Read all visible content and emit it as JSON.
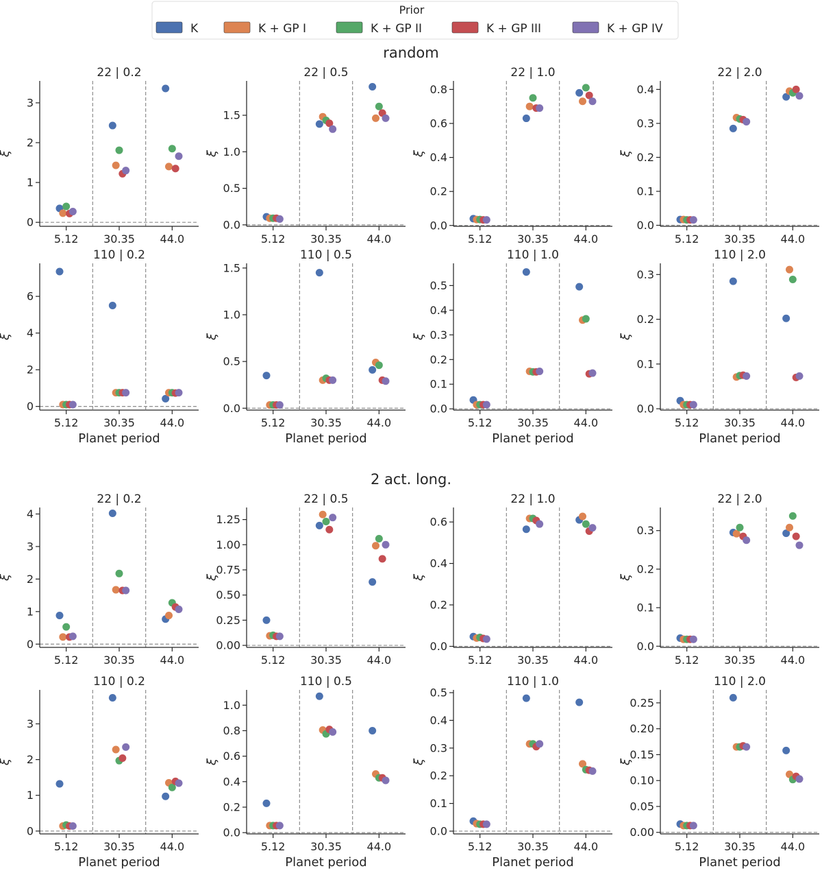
{
  "legend": {
    "title": "Prior",
    "entries": [
      {
        "label": "K",
        "color": "#4c72b0"
      },
      {
        "label": "K + GP I",
        "color": "#dd8452"
      },
      {
        "label": "K + GP II",
        "color": "#55a868"
      },
      {
        "label": "K + GP III",
        "color": "#c44e52"
      },
      {
        "label": "K + GP IV",
        "color": "#8172b3"
      }
    ]
  },
  "colors": {
    "K": "#4c72b0",
    "K + GP I": "#dd8452",
    "K + GP II": "#55a868",
    "K + GP III": "#c44e52",
    "K + GP IV": "#8172b3",
    "axis": "#262626",
    "guide": "#8c8c8c"
  },
  "sections": [
    {
      "title": "random"
    },
    {
      "title": "2 act. long."
    }
  ],
  "chart_data": [
    {
      "type": "scatter",
      "section": "random",
      "title": "22 | 0.2",
      "categories": [
        "5.12",
        "30.35",
        "44.0"
      ],
      "ylim": [
        -0.1,
        3.55
      ],
      "yticks": [
        0,
        1,
        2,
        3
      ],
      "ylabel": "ξ",
      "xlabel": "",
      "series": [
        {
          "name": "K",
          "values": [
            0.35,
            2.43,
            3.36
          ]
        },
        {
          "name": "K + GP I",
          "values": [
            0.23,
            1.43,
            1.4
          ]
        },
        {
          "name": "K + GP II",
          "values": [
            0.4,
            1.81,
            1.85
          ]
        },
        {
          "name": "K + GP III",
          "values": [
            0.22,
            1.22,
            1.35
          ]
        },
        {
          "name": "K + GP IV",
          "values": [
            0.27,
            1.3,
            1.66
          ]
        }
      ]
    },
    {
      "type": "scatter",
      "section": "random",
      "title": "22 | 0.5",
      "categories": [
        "5.12",
        "30.35",
        "44.0"
      ],
      "ylim": [
        -0.02,
        1.97
      ],
      "yticks": [
        0.0,
        0.5,
        1.0,
        1.5
      ],
      "ytick_labels": [
        "0.0",
        "0.5",
        "1.0",
        "1.5"
      ],
      "ylabel": "ξ",
      "xlabel": "",
      "series": [
        {
          "name": "K",
          "values": [
            0.11,
            1.38,
            1.89
          ]
        },
        {
          "name": "K + GP I",
          "values": [
            0.09,
            1.48,
            1.46
          ]
        },
        {
          "name": "K + GP II",
          "values": [
            0.09,
            1.43,
            1.62
          ]
        },
        {
          "name": "K + GP III",
          "values": [
            0.09,
            1.39,
            1.53
          ]
        },
        {
          "name": "K + GP IV",
          "values": [
            0.08,
            1.31,
            1.46
          ]
        }
      ]
    },
    {
      "type": "scatter",
      "section": "random",
      "title": "22 | 1.0",
      "categories": [
        "5.12",
        "30.35",
        "44.0"
      ],
      "ylim": [
        -0.005,
        0.85
      ],
      "yticks": [
        0.0,
        0.2,
        0.4,
        0.6,
        0.8
      ],
      "ytick_labels": [
        "0.0",
        "0.2",
        "0.4",
        "0.6",
        "0.8"
      ],
      "ylabel": "ξ",
      "xlabel": "",
      "series": [
        {
          "name": "K",
          "values": [
            0.04,
            0.63,
            0.78
          ]
        },
        {
          "name": "K + GP I",
          "values": [
            0.035,
            0.7,
            0.73
          ]
        },
        {
          "name": "K + GP II",
          "values": [
            0.035,
            0.75,
            0.81
          ]
        },
        {
          "name": "K + GP III",
          "values": [
            0.033,
            0.69,
            0.765
          ]
        },
        {
          "name": "K + GP IV",
          "values": [
            0.033,
            0.69,
            0.73
          ]
        }
      ]
    },
    {
      "type": "scatter",
      "section": "random",
      "title": "22 | 2.0",
      "categories": [
        "5.12",
        "30.35",
        "44.0"
      ],
      "ylim": [
        -0.003,
        0.425
      ],
      "yticks": [
        0.0,
        0.1,
        0.2,
        0.3,
        0.4
      ],
      "ytick_labels": [
        "0.0",
        "0.1",
        "0.2",
        "0.3",
        "0.4"
      ],
      "ylabel": "ξ",
      "xlabel": "",
      "series": [
        {
          "name": "K",
          "values": [
            0.017,
            0.285,
            0.378
          ]
        },
        {
          "name": "K + GP I",
          "values": [
            0.017,
            0.317,
            0.395
          ]
        },
        {
          "name": "K + GP II",
          "values": [
            0.016,
            0.313,
            0.39
          ]
        },
        {
          "name": "K + GP III",
          "values": [
            0.016,
            0.311,
            0.4
          ]
        },
        {
          "name": "K + GP IV",
          "values": [
            0.016,
            0.305,
            0.381
          ]
        }
      ]
    },
    {
      "type": "scatter",
      "section": "random",
      "title": "110 | 0.2",
      "categories": [
        "5.12",
        "30.35",
        "44.0"
      ],
      "ylim": [
        -0.2,
        7.8
      ],
      "yticks": [
        0,
        2,
        4,
        6
      ],
      "ylabel": "ξ",
      "xlabel": "Planet period",
      "series": [
        {
          "name": "K",
          "values": [
            7.35,
            5.5,
            0.42
          ]
        },
        {
          "name": "K + GP I",
          "values": [
            0.1,
            0.75,
            0.75
          ]
        },
        {
          "name": "K + GP II",
          "values": [
            0.1,
            0.75,
            0.75
          ]
        },
        {
          "name": "K + GP III",
          "values": [
            0.1,
            0.75,
            0.73
          ]
        },
        {
          "name": "K + GP IV",
          "values": [
            0.1,
            0.75,
            0.75
          ]
        }
      ]
    },
    {
      "type": "scatter",
      "section": "random",
      "title": "110 | 0.5",
      "categories": [
        "5.12",
        "30.35",
        "44.0"
      ],
      "ylim": [
        -0.02,
        1.55
      ],
      "yticks": [
        0.0,
        0.5,
        1.0,
        1.5
      ],
      "ytick_labels": [
        "0.0",
        "0.5",
        "1.0",
        "1.5"
      ],
      "ylabel": "ξ",
      "xlabel": "Planet period",
      "series": [
        {
          "name": "K",
          "values": [
            0.35,
            1.45,
            0.41
          ]
        },
        {
          "name": "K + GP I",
          "values": [
            0.035,
            0.3,
            0.49
          ]
        },
        {
          "name": "K + GP II",
          "values": [
            0.035,
            0.32,
            0.46
          ]
        },
        {
          "name": "K + GP III",
          "values": [
            0.035,
            0.3,
            0.3
          ]
        },
        {
          "name": "K + GP IV",
          "values": [
            0.035,
            0.3,
            0.29
          ]
        }
      ]
    },
    {
      "type": "scatter",
      "section": "random",
      "title": "110 | 1.0",
      "categories": [
        "5.12",
        "30.35",
        "44.0"
      ],
      "ylim": [
        -0.005,
        0.59
      ],
      "yticks": [
        0.0,
        0.1,
        0.2,
        0.3,
        0.4,
        0.5
      ],
      "ytick_labels": [
        "0.0",
        "0.1",
        "0.2",
        "0.3",
        "0.4",
        "0.5"
      ],
      "ylabel": "ξ",
      "xlabel": "Planet period",
      "series": [
        {
          "name": "K",
          "values": [
            0.036,
            0.555,
            0.495
          ]
        },
        {
          "name": "K + GP I",
          "values": [
            0.017,
            0.152,
            0.36
          ]
        },
        {
          "name": "K + GP II",
          "values": [
            0.017,
            0.15,
            0.365
          ]
        },
        {
          "name": "K + GP III",
          "values": [
            0.017,
            0.15,
            0.142
          ]
        },
        {
          "name": "K + GP IV",
          "values": [
            0.017,
            0.152,
            0.145
          ]
        }
      ]
    },
    {
      "type": "scatter",
      "section": "random",
      "title": "110 | 2.0",
      "categories": [
        "5.12",
        "30.35",
        "44.0"
      ],
      "ylim": [
        -0.003,
        0.325
      ],
      "yticks": [
        0.0,
        0.1,
        0.2,
        0.3
      ],
      "ytick_labels": [
        "0.0",
        "0.1",
        "0.2",
        "0.3"
      ],
      "ylabel": "ξ",
      "xlabel": "Planet period",
      "series": [
        {
          "name": "K",
          "values": [
            0.018,
            0.285,
            0.202
          ]
        },
        {
          "name": "K + GP I",
          "values": [
            0.009,
            0.071,
            0.311
          ]
        },
        {
          "name": "K + GP II",
          "values": [
            0.009,
            0.074,
            0.289
          ]
        },
        {
          "name": "K + GP III",
          "values": [
            0.009,
            0.075,
            0.07
          ]
        },
        {
          "name": "K + GP IV",
          "values": [
            0.009,
            0.073,
            0.073
          ]
        }
      ]
    },
    {
      "type": "scatter",
      "section": "2 act. long.",
      "title": "22 | 0.2",
      "categories": [
        "5.12",
        "30.35",
        "44.0"
      ],
      "ylim": [
        -0.1,
        4.2
      ],
      "yticks": [
        0,
        1,
        2,
        3,
        4
      ],
      "ylabel": "ξ",
      "xlabel": "",
      "series": [
        {
          "name": "K",
          "values": [
            0.88,
            4.02,
            0.77
          ]
        },
        {
          "name": "K + GP I",
          "values": [
            0.22,
            1.67,
            0.88
          ]
        },
        {
          "name": "K + GP II",
          "values": [
            0.53,
            2.17,
            1.27
          ]
        },
        {
          "name": "K + GP III",
          "values": [
            0.22,
            1.65,
            1.14
          ]
        },
        {
          "name": "K + GP IV",
          "values": [
            0.24,
            1.65,
            1.07
          ]
        }
      ]
    },
    {
      "type": "scatter",
      "section": "2 act. long.",
      "title": "22 | 0.5",
      "categories": [
        "5.12",
        "30.35",
        "44.0"
      ],
      "ylim": [
        -0.02,
        1.37
      ],
      "yticks": [
        0.0,
        0.25,
        0.5,
        0.75,
        1.0,
        1.25
      ],
      "ytick_labels": [
        "0.00",
        "0.25",
        "0.50",
        "0.75",
        "1.00",
        "1.25"
      ],
      "ylabel": "ξ",
      "xlabel": "",
      "series": [
        {
          "name": "K",
          "values": [
            0.25,
            1.19,
            0.63
          ]
        },
        {
          "name": "K + GP I",
          "values": [
            0.095,
            1.3,
            0.99
          ]
        },
        {
          "name": "K + GP II",
          "values": [
            0.1,
            1.23,
            1.06
          ]
        },
        {
          "name": "K + GP III",
          "values": [
            0.09,
            1.15,
            0.86
          ]
        },
        {
          "name": "K + GP IV",
          "values": [
            0.09,
            1.27,
            1.0
          ]
        }
      ]
    },
    {
      "type": "scatter",
      "section": "2 act. long.",
      "title": "22 | 1.0",
      "categories": [
        "5.12",
        "30.35",
        "44.0"
      ],
      "ylim": [
        -0.005,
        0.67
      ],
      "yticks": [
        0.0,
        0.2,
        0.4,
        0.6
      ],
      "ytick_labels": [
        "0.0",
        "0.2",
        "0.4",
        "0.6"
      ],
      "ylabel": "ξ",
      "xlabel": "",
      "series": [
        {
          "name": "K",
          "values": [
            0.047,
            0.565,
            0.61
          ]
        },
        {
          "name": "K + GP I",
          "values": [
            0.04,
            0.617,
            0.627
          ]
        },
        {
          "name": "K + GP II",
          "values": [
            0.043,
            0.617,
            0.59
          ]
        },
        {
          "name": "K + GP III",
          "values": [
            0.038,
            0.607,
            0.556
          ]
        },
        {
          "name": "K + GP IV",
          "values": [
            0.035,
            0.59,
            0.572
          ]
        }
      ]
    },
    {
      "type": "scatter",
      "section": "2 act. long.",
      "title": "22 | 2.0",
      "categories": [
        "5.12",
        "30.35",
        "44.0"
      ],
      "ylim": [
        -0.003,
        0.36
      ],
      "yticks": [
        0.0,
        0.1,
        0.2,
        0.3
      ],
      "ytick_labels": [
        "0.0",
        "0.1",
        "0.2",
        "0.3"
      ],
      "ylabel": "ξ",
      "xlabel": "",
      "series": [
        {
          "name": "K",
          "values": [
            0.021,
            0.295,
            0.293
          ]
        },
        {
          "name": "K + GP I",
          "values": [
            0.018,
            0.292,
            0.308
          ]
        },
        {
          "name": "K + GP II",
          "values": [
            0.018,
            0.308,
            0.338
          ]
        },
        {
          "name": "K + GP III",
          "values": [
            0.018,
            0.285,
            0.285
          ]
        },
        {
          "name": "K + GP IV",
          "values": [
            0.018,
            0.275,
            0.262
          ]
        }
      ]
    },
    {
      "type": "scatter",
      "section": "2 act. long.",
      "title": "110 | 0.2",
      "categories": [
        "5.12",
        "30.35",
        "44.0"
      ],
      "ylim": [
        -0.08,
        3.95
      ],
      "yticks": [
        0,
        1,
        2,
        3
      ],
      "ylabel": "ξ",
      "xlabel": "Planet period",
      "series": [
        {
          "name": "K",
          "values": [
            1.32,
            3.73,
            0.97
          ]
        },
        {
          "name": "K + GP I",
          "values": [
            0.14,
            2.28,
            1.35
          ]
        },
        {
          "name": "K + GP II",
          "values": [
            0.17,
            1.97,
            1.22
          ]
        },
        {
          "name": "K + GP III",
          "values": [
            0.14,
            2.04,
            1.39
          ]
        },
        {
          "name": "K + GP IV",
          "values": [
            0.14,
            2.35,
            1.34
          ]
        }
      ]
    },
    {
      "type": "scatter",
      "section": "2 act. long.",
      "title": "110 | 0.5",
      "categories": [
        "5.12",
        "30.35",
        "44.0"
      ],
      "ylim": [
        -0.01,
        1.12
      ],
      "yticks": [
        0.0,
        0.2,
        0.4,
        0.6,
        0.8,
        1.0
      ],
      "ytick_labels": [
        "0.0",
        "0.2",
        "0.4",
        "0.6",
        "0.8",
        "1.0"
      ],
      "ylabel": "ξ",
      "xlabel": "Planet period",
      "series": [
        {
          "name": "K",
          "values": [
            0.23,
            1.07,
            0.8
          ]
        },
        {
          "name": "K + GP I",
          "values": [
            0.055,
            0.805,
            0.46
          ]
        },
        {
          "name": "K + GP II",
          "values": [
            0.055,
            0.775,
            0.43
          ]
        },
        {
          "name": "K + GP III",
          "values": [
            0.055,
            0.81,
            0.43
          ]
        },
        {
          "name": "K + GP IV",
          "values": [
            0.055,
            0.79,
            0.41
          ]
        }
      ]
    },
    {
      "type": "scatter",
      "section": "2 act. long.",
      "title": "110 | 1.0",
      "categories": [
        "5.12",
        "30.35",
        "44.0"
      ],
      "ylim": [
        -0.01,
        0.51
      ],
      "yticks": [
        0.0,
        0.1,
        0.2,
        0.3,
        0.4,
        0.5
      ],
      "ytick_labels": [
        "0.0",
        "0.1",
        "0.2",
        "0.3",
        "0.4",
        "0.5"
      ],
      "ylabel": "ξ",
      "xlabel": "Planet period",
      "series": [
        {
          "name": "K",
          "values": [
            0.036,
            0.48,
            0.465
          ]
        },
        {
          "name": "K + GP I",
          "values": [
            0.027,
            0.315,
            0.243
          ]
        },
        {
          "name": "K + GP II",
          "values": [
            0.025,
            0.315,
            0.222
          ]
        },
        {
          "name": "K + GP III",
          "values": [
            0.025,
            0.305,
            0.22
          ]
        },
        {
          "name": "K + GP IV",
          "values": [
            0.025,
            0.315,
            0.217
          ]
        }
      ]
    },
    {
      "type": "scatter",
      "section": "2 act. long.",
      "title": "110 | 2.0",
      "categories": [
        "5.12",
        "30.35",
        "44.0"
      ],
      "ylim": [
        -0.003,
        0.275
      ],
      "yticks": [
        0.0,
        0.05,
        0.1,
        0.15,
        0.2,
        0.25
      ],
      "ytick_labels": [
        "0.00",
        "0.05",
        "0.10",
        "0.15",
        "0.20",
        "0.25"
      ],
      "ylabel": "ξ",
      "xlabel": "Planet period",
      "series": [
        {
          "name": "K",
          "values": [
            0.016,
            0.26,
            0.158
          ]
        },
        {
          "name": "K + GP I",
          "values": [
            0.013,
            0.165,
            0.112
          ]
        },
        {
          "name": "K + GP II",
          "values": [
            0.013,
            0.165,
            0.102
          ]
        },
        {
          "name": "K + GP III",
          "values": [
            0.013,
            0.167,
            0.108
          ]
        },
        {
          "name": "K + GP IV",
          "values": [
            0.013,
            0.165,
            0.103
          ]
        }
      ]
    }
  ]
}
